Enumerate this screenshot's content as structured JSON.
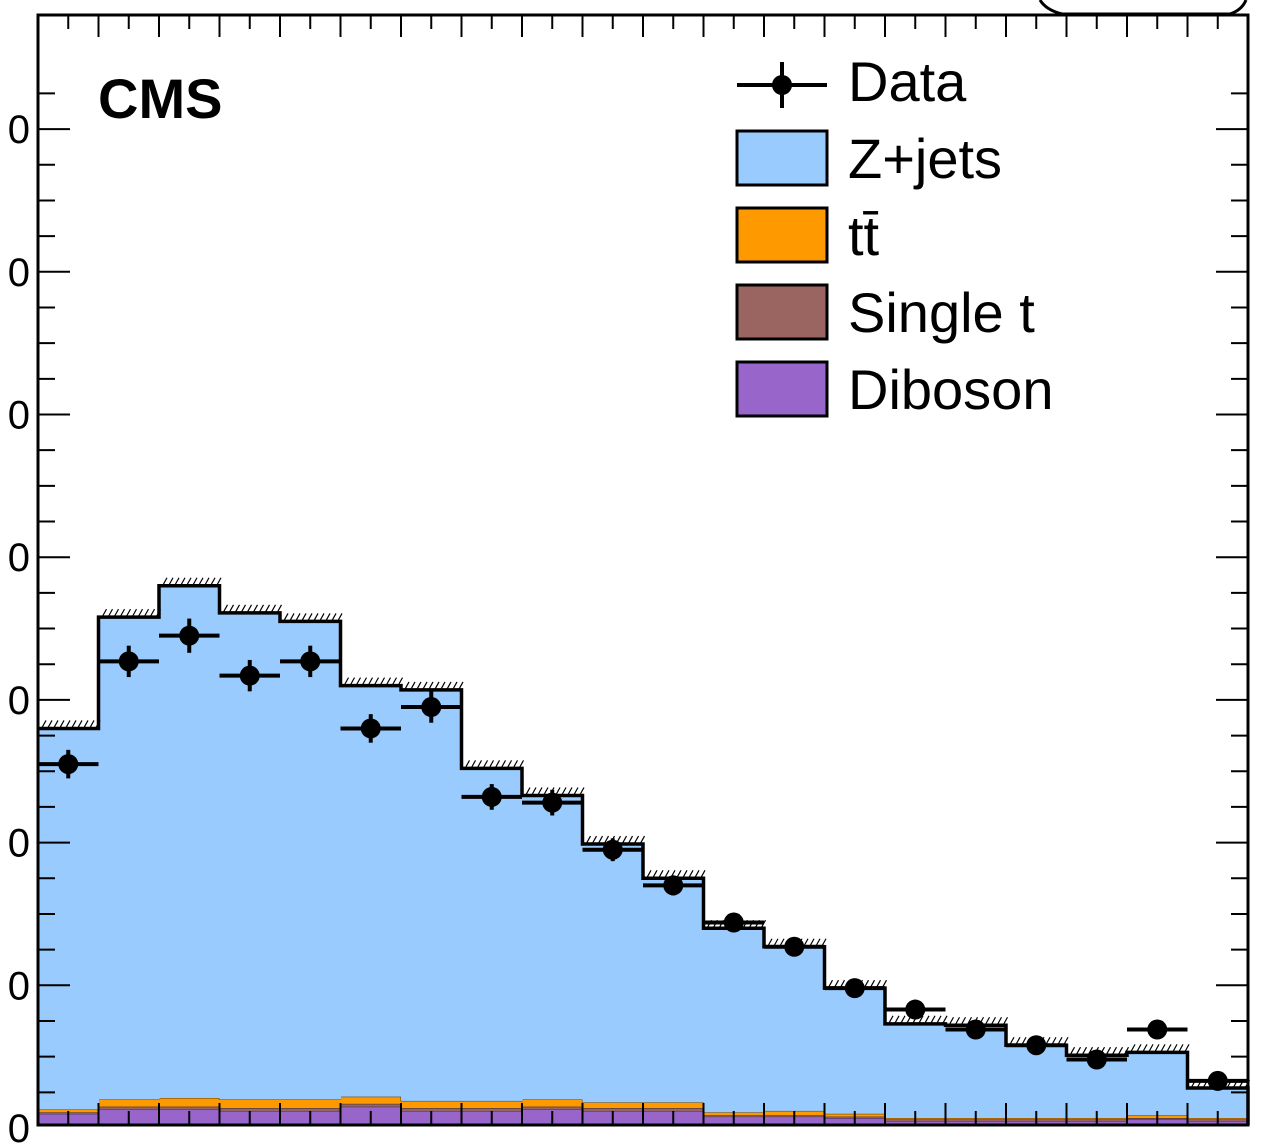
{
  "header": {
    "experiment_label": "CMS"
  },
  "legend": {
    "placement": "top-right",
    "entries": [
      {
        "key": "data",
        "label": "Data",
        "color": "#000000",
        "style": "marker"
      },
      {
        "key": "zjets",
        "label": "Z+jets",
        "color": "#9acbfe",
        "style": "fill"
      },
      {
        "key": "ttbar",
        "label": "tt̄",
        "color": "#fe9a00",
        "style": "fill"
      },
      {
        "key": "singlet",
        "label": "Single t",
        "color": "#9a6560",
        "style": "fill"
      },
      {
        "key": "diboson",
        "label": "Diboson",
        "color": "#9865cb",
        "style": "fill"
      }
    ]
  },
  "chart_data": {
    "type": "bar",
    "stacked": true,
    "y_range": [
      0,
      7
    ],
    "y_ticks": [
      0,
      1,
      2,
      3,
      4,
      5,
      6,
      7
    ],
    "y_tick_labels": [
      "0",
      "0",
      "0",
      "0",
      "0",
      "0",
      "0",
      "0"
    ],
    "x_bins": 20,
    "grid": false,
    "series": [
      {
        "name": "Diboson",
        "color": "#9865cb",
        "values": [
          0.1,
          0.13,
          0.13,
          0.12,
          0.12,
          0.15,
          0.12,
          0.12,
          0.13,
          0.12,
          0.12,
          0.08,
          0.08,
          0.07,
          0.05,
          0.05,
          0.05,
          0.05,
          0.06,
          0.05
        ]
      },
      {
        "name": "Single t",
        "color": "#9a6560",
        "values": [
          0.01,
          0.02,
          0.02,
          0.02,
          0.02,
          0.02,
          0.02,
          0.02,
          0.02,
          0.02,
          0.02,
          0.01,
          0.01,
          0.01,
          0.01,
          0.01,
          0.01,
          0.01,
          0.01,
          0.01
        ]
      },
      {
        "name": "tt̄",
        "color": "#fe9a00",
        "values": [
          0.02,
          0.05,
          0.06,
          0.06,
          0.06,
          0.05,
          0.05,
          0.05,
          0.05,
          0.04,
          0.04,
          0.02,
          0.03,
          0.02,
          0.01,
          0.01,
          0.01,
          0.01,
          0.02,
          0.01
        ]
      },
      {
        "name": "Z+jets",
        "color": "#9acbfe",
        "values": [
          2.67,
          3.38,
          3.59,
          3.41,
          3.35,
          2.88,
          2.88,
          2.33,
          2.13,
          1.81,
          1.57,
          1.29,
          1.15,
          0.88,
          0.66,
          0.65,
          0.51,
          0.44,
          0.44,
          0.21
        ]
      }
    ],
    "mc_total": [
      2.8,
      3.58,
      3.8,
      3.61,
      3.55,
      3.1,
      3.07,
      2.52,
      2.33,
      1.99,
      1.75,
      1.4,
      1.27,
      0.98,
      0.73,
      0.72,
      0.58,
      0.51,
      0.53,
      0.28
    ],
    "data": {
      "name": "Data",
      "values": [
        2.55,
        3.27,
        3.45,
        3.17,
        3.27,
        2.8,
        2.95,
        2.32,
        2.28,
        1.95,
        1.7,
        1.44,
        1.27,
        0.98,
        0.83,
        0.69,
        0.58,
        0.48,
        0.69,
        0.33
      ],
      "errors": [
        0.1,
        0.11,
        0.12,
        0.11,
        0.11,
        0.1,
        0.11,
        0.09,
        0.09,
        0.08,
        0.07,
        0.06,
        0.06,
        0.05,
        0.04,
        0.03,
        0.03,
        0.03,
        0.03,
        0.02
      ]
    }
  }
}
